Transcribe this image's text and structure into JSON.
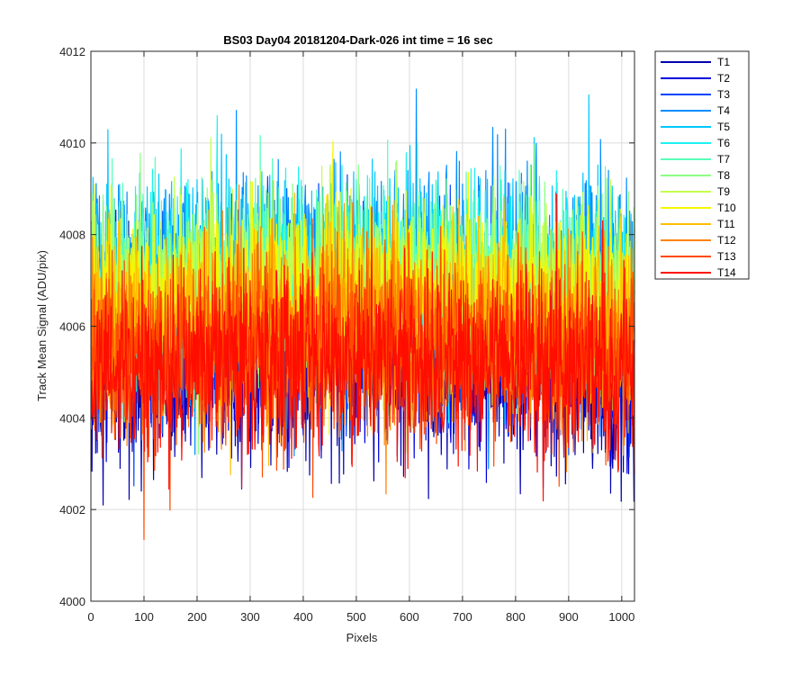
{
  "chart_data": {
    "type": "line",
    "title": "BS03 Day04 20181204-Dark-026 int time = 16 sec",
    "xlabel": "Pixels",
    "ylabel": "Track Mean Signal (ADU/pix)",
    "xlim": [
      0,
      1024
    ],
    "ylim": [
      4000,
      4012
    ],
    "xticks": [
      0,
      100,
      200,
      300,
      400,
      500,
      600,
      700,
      800,
      900,
      1000
    ],
    "yticks": [
      4000,
      4002,
      4004,
      4006,
      4008,
      4010,
      4012
    ],
    "grid": true,
    "legend_position": "outside-top-right",
    "n_points": 1024,
    "series": [
      {
        "name": "T1",
        "color": "#0000b0",
        "mean": 4005.0,
        "spread": 1.1
      },
      {
        "name": "T2",
        "color": "#0000e0",
        "mean": 4005.4,
        "spread": 1.1
      },
      {
        "name": "T3",
        "color": "#0044ff",
        "mean": 4006.2,
        "spread": 1.1
      },
      {
        "name": "T4",
        "color": "#008cff",
        "mean": 4006.8,
        "spread": 1.2
      },
      {
        "name": "T5",
        "color": "#00c8ff",
        "mean": 4006.9,
        "spread": 1.1
      },
      {
        "name": "T6",
        "color": "#1ef2ef",
        "mean": 4006.8,
        "spread": 1.0
      },
      {
        "name": "T7",
        "color": "#58ffb8",
        "mean": 4006.7,
        "spread": 1.0
      },
      {
        "name": "T8",
        "color": "#8cff84",
        "mean": 4006.7,
        "spread": 1.0
      },
      {
        "name": "T9",
        "color": "#c4ff4c",
        "mean": 4006.5,
        "spread": 1.0
      },
      {
        "name": "T10",
        "color": "#f6f600",
        "mean": 4006.3,
        "spread": 1.0
      },
      {
        "name": "T11",
        "color": "#ffbe00",
        "mean": 4006.0,
        "spread": 1.0
      },
      {
        "name": "T12",
        "color": "#ff8200",
        "mean": 4005.6,
        "spread": 1.0
      },
      {
        "name": "T13",
        "color": "#ff4a00",
        "mean": 4005.3,
        "spread": 1.0
      },
      {
        "name": "T14",
        "color": "#ff0e00",
        "mean": 4005.0,
        "spread": 1.0
      }
    ]
  }
}
